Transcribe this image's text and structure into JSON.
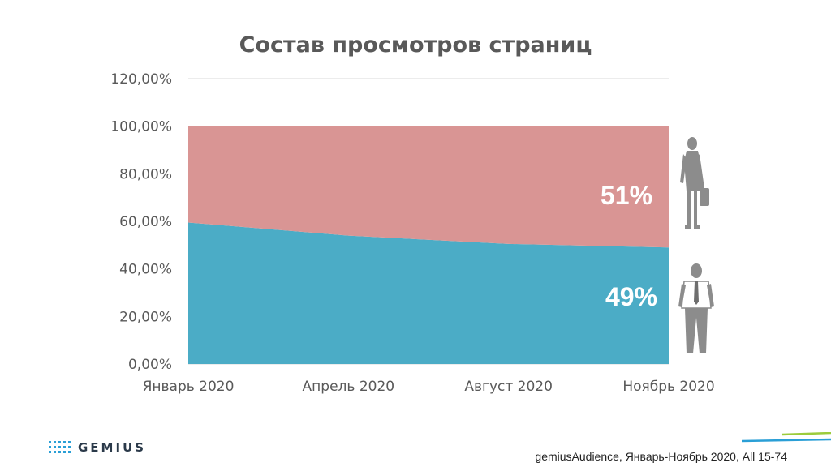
{
  "chart_data": {
    "type": "area",
    "title": "Состав просмотров страниц",
    "x": [
      "Январь 2020",
      "Апрель 2020",
      "Август 2020",
      "Ноябрь 2020"
    ],
    "x_ticks": [
      "Январь 2020",
      "Апрель 2020",
      "Август 2020",
      "Ноябрь 2020"
    ],
    "stacked": true,
    "series": [
      {
        "key": "male",
        "values": [
          59.5,
          54,
          50.5,
          49
        ],
        "color": "#4bacc6"
      },
      {
        "key": "female",
        "values": [
          40.5,
          46,
          49.5,
          51
        ],
        "color": "#d99594"
      }
    ],
    "ylim": [
      0,
      120
    ],
    "yticks": [
      0,
      20,
      40,
      60,
      80,
      100,
      120
    ],
    "ytick_labels": [
      "0,00%",
      "20,00%",
      "40,00%",
      "60,00%",
      "80,00%",
      "100,00%",
      "120,00%"
    ],
    "grid": true,
    "annotations": {
      "female_label": "51%",
      "male_label": "49%"
    }
  },
  "icons": [
    "woman-silhouette-icon",
    "man-silhouette-icon",
    "gemius-logo-icon"
  ],
  "footer": {
    "logo_text": "GEMIUS",
    "source": "gemiusAudience, Январь-Ноябрь 2020, All 15-74"
  }
}
